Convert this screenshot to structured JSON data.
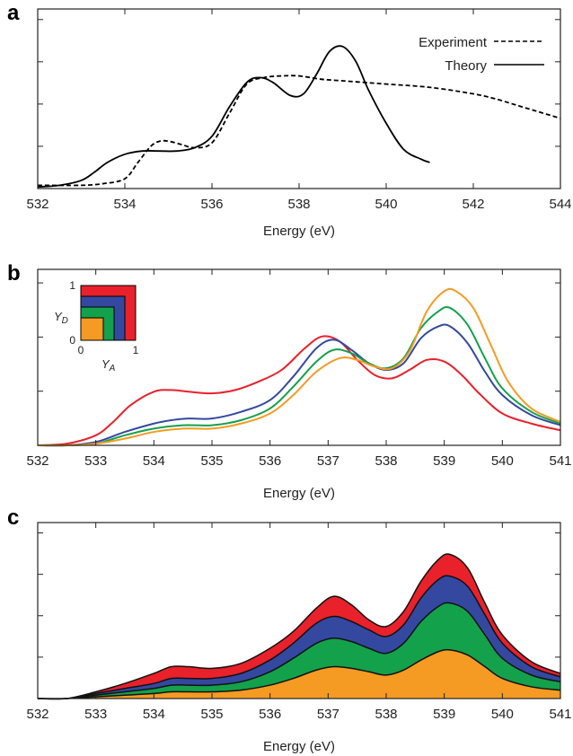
{
  "chart_data": [
    {
      "panel": "a",
      "type": "line",
      "xlabel": "Energy (eV)",
      "ylabel": "",
      "xlim": [
        532,
        544
      ],
      "ylim": [
        0,
        1.1
      ],
      "xticks": [
        532,
        534,
        536,
        538,
        540,
        542,
        544
      ],
      "legend_position": "top-right",
      "series": [
        {
          "name": "Experiment",
          "style": "dashed",
          "color": "#000000",
          "x": [
            532,
            533,
            533.5,
            534,
            534.3,
            534.6,
            534.8,
            535,
            535.3,
            535.6,
            536,
            536.4,
            536.8,
            537.2,
            537.6,
            538,
            538.5,
            539,
            539.5,
            540,
            541,
            542,
            542.5,
            543,
            543.5,
            544
          ],
          "y": [
            0.02,
            0.02,
            0.03,
            0.06,
            0.16,
            0.26,
            0.29,
            0.29,
            0.27,
            0.25,
            0.28,
            0.46,
            0.64,
            0.68,
            0.69,
            0.69,
            0.67,
            0.66,
            0.65,
            0.64,
            0.62,
            0.58,
            0.55,
            0.51,
            0.47,
            0.43
          ]
        },
        {
          "name": "Theory",
          "style": "solid",
          "color": "#000000",
          "x": [
            532,
            532.5,
            533,
            533.3,
            533.6,
            534,
            534.4,
            534.8,
            535.2,
            535.6,
            536,
            536.4,
            536.8,
            537.1,
            537.4,
            537.8,
            538.1,
            538.4,
            538.7,
            539,
            539.3,
            539.6,
            540,
            540.4,
            540.8,
            541
          ],
          "y": [
            0.01,
            0.02,
            0.05,
            0.1,
            0.16,
            0.21,
            0.23,
            0.23,
            0.23,
            0.25,
            0.32,
            0.5,
            0.65,
            0.68,
            0.65,
            0.57,
            0.58,
            0.7,
            0.84,
            0.87,
            0.78,
            0.6,
            0.4,
            0.24,
            0.18,
            0.16
          ]
        }
      ]
    },
    {
      "panel": "b",
      "type": "line",
      "xlabel": "Energy (eV)",
      "ylabel": "",
      "xlim": [
        532,
        541
      ],
      "ylim": [
        0,
        1.05
      ],
      "xticks": [
        532,
        533,
        534,
        535,
        536,
        537,
        538,
        539,
        540,
        541
      ],
      "inset": {
        "xlabel": "Y_A",
        "ylabel": "Y_D",
        "x_tick_labels": [
          "0",
          "1"
        ],
        "y_tick_labels": [
          "0",
          "1"
        ],
        "colors": [
          "#e8212b",
          "#3448a0",
          "#14a14b",
          "#f59a23"
        ]
      },
      "series": [
        {
          "color": "#e8212b",
          "x": [
            532,
            532.5,
            533,
            533.3,
            533.6,
            534,
            534.3,
            534.6,
            535,
            535.4,
            535.8,
            536.2,
            536.6,
            536.9,
            537.2,
            537.5,
            537.8,
            538.1,
            538.4,
            538.7,
            539,
            539.3,
            539.6,
            540,
            540.5,
            541
          ],
          "y": [
            0.0,
            0.01,
            0.06,
            0.14,
            0.24,
            0.32,
            0.33,
            0.32,
            0.31,
            0.33,
            0.38,
            0.45,
            0.58,
            0.65,
            0.62,
            0.51,
            0.42,
            0.4,
            0.45,
            0.51,
            0.5,
            0.42,
            0.31,
            0.19,
            0.13,
            0.09
          ]
        },
        {
          "color": "#3448a0",
          "x": [
            532,
            532.5,
            533,
            533.5,
            534,
            534.3,
            534.6,
            535,
            535.5,
            536,
            536.4,
            536.8,
            537.1,
            537.4,
            537.7,
            538,
            538.3,
            538.6,
            538.9,
            539.1,
            539.4,
            539.7,
            540,
            540.5,
            541
          ],
          "y": [
            0.0,
            0.0,
            0.02,
            0.08,
            0.13,
            0.15,
            0.16,
            0.16,
            0.2,
            0.27,
            0.41,
            0.58,
            0.63,
            0.57,
            0.49,
            0.45,
            0.49,
            0.64,
            0.71,
            0.71,
            0.61,
            0.44,
            0.3,
            0.18,
            0.12
          ]
        },
        {
          "color": "#14a14b",
          "x": [
            532,
            532.5,
            533,
            533.5,
            534,
            534.5,
            535,
            535.5,
            536,
            536.4,
            536.8,
            537.1,
            537.4,
            537.7,
            538,
            538.3,
            538.6,
            538.9,
            539.1,
            539.4,
            539.7,
            540,
            540.5,
            541
          ],
          "y": [
            0.0,
            0.0,
            0.01,
            0.06,
            0.1,
            0.12,
            0.12,
            0.15,
            0.22,
            0.35,
            0.5,
            0.57,
            0.55,
            0.49,
            0.46,
            0.52,
            0.7,
            0.8,
            0.82,
            0.72,
            0.52,
            0.34,
            0.2,
            0.13
          ]
        },
        {
          "color": "#f59a23",
          "x": [
            532,
            532.5,
            533,
            533.5,
            534,
            534.5,
            535,
            535.5,
            536,
            536.4,
            536.8,
            537.2,
            537.5,
            537.8,
            538.1,
            538.4,
            538.7,
            539,
            539.2,
            539.5,
            539.8,
            540.1,
            540.5,
            541
          ],
          "y": [
            0.0,
            0.0,
            0.01,
            0.04,
            0.08,
            0.1,
            0.1,
            0.13,
            0.19,
            0.3,
            0.44,
            0.52,
            0.51,
            0.47,
            0.46,
            0.56,
            0.8,
            0.92,
            0.92,
            0.82,
            0.6,
            0.38,
            0.22,
            0.14
          ]
        }
      ]
    },
    {
      "panel": "c",
      "type": "area",
      "stacked": true,
      "xlabel": "Energy (eV)",
      "ylabel": "",
      "xlim": [
        532,
        541
      ],
      "ylim": [
        0,
        1.05
      ],
      "xticks": [
        532,
        533,
        534,
        535,
        536,
        537,
        538,
        539,
        540,
        541
      ],
      "x": [
        532,
        532.5,
        533,
        533.5,
        534,
        534.3,
        534.6,
        535,
        535.5,
        536,
        536.4,
        536.8,
        537.1,
        537.4,
        537.7,
        538,
        538.3,
        538.6,
        538.9,
        539.1,
        539.4,
        539.7,
        540,
        540.5,
        541
      ],
      "series": [
        {
          "color": "#f59a23",
          "values": [
            0.0,
            0.0,
            0.01,
            0.02,
            0.03,
            0.04,
            0.04,
            0.04,
            0.05,
            0.08,
            0.12,
            0.17,
            0.19,
            0.18,
            0.16,
            0.14,
            0.17,
            0.23,
            0.28,
            0.29,
            0.26,
            0.19,
            0.12,
            0.07,
            0.05
          ]
        },
        {
          "color": "#14a14b",
          "values": [
            0.0,
            0.0,
            0.01,
            0.02,
            0.03,
            0.04,
            0.04,
            0.04,
            0.05,
            0.08,
            0.12,
            0.16,
            0.17,
            0.16,
            0.14,
            0.13,
            0.16,
            0.23,
            0.27,
            0.28,
            0.26,
            0.19,
            0.12,
            0.07,
            0.05
          ]
        },
        {
          "color": "#3448a0",
          "values": [
            0.0,
            0.0,
            0.01,
            0.02,
            0.03,
            0.04,
            0.04,
            0.04,
            0.05,
            0.07,
            0.09,
            0.12,
            0.13,
            0.12,
            0.11,
            0.1,
            0.11,
            0.14,
            0.16,
            0.16,
            0.15,
            0.12,
            0.09,
            0.05,
            0.03
          ]
        },
        {
          "color": "#e8212b",
          "values": [
            0.0,
            0.0,
            0.01,
            0.03,
            0.06,
            0.07,
            0.07,
            0.06,
            0.06,
            0.07,
            0.07,
            0.09,
            0.12,
            0.1,
            0.06,
            0.06,
            0.08,
            0.1,
            0.12,
            0.13,
            0.11,
            0.07,
            0.05,
            0.03,
            0.02
          ]
        }
      ]
    }
  ]
}
